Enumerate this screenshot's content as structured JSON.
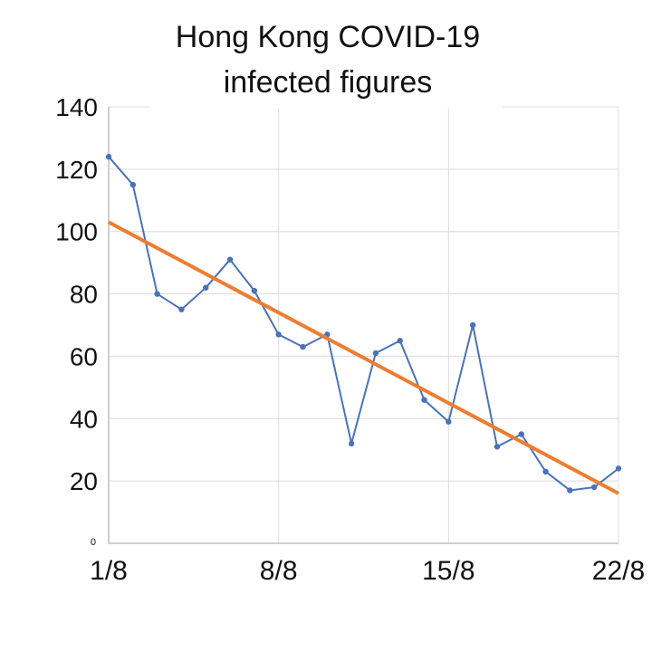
{
  "chart_data": {
    "type": "line",
    "title_lines": [
      "Hong Kong COVID-19",
      "infected figures"
    ],
    "xlabel": "",
    "ylabel": "",
    "ylim": [
      0,
      140
    ],
    "yticks": [
      "0",
      "20",
      "40",
      "60",
      "80",
      "100",
      "120",
      "140"
    ],
    "xticks": [
      {
        "label": "1/8",
        "day": 1
      },
      {
        "label": "8/8",
        "day": 8
      },
      {
        "label": "15/8",
        "day": 15
      },
      {
        "label": "22/8",
        "day": 22
      }
    ],
    "grid": true,
    "series": [
      {
        "color": "#4a72b8",
        "x": [
          1,
          2,
          3,
          4,
          5,
          6,
          7,
          8,
          9,
          10,
          11,
          12,
          13,
          14,
          15,
          16,
          17,
          18,
          19,
          20,
          21,
          22
        ],
        "values": [
          124,
          115,
          80,
          75,
          82,
          91,
          81,
          67,
          63,
          67,
          32,
          61,
          65,
          46,
          39,
          70,
          31,
          35,
          23,
          17,
          18,
          24
        ]
      }
    ],
    "trendline": {
      "color": "#ed7d31",
      "x": [
        1,
        22
      ],
      "values": [
        103,
        16
      ]
    }
  }
}
